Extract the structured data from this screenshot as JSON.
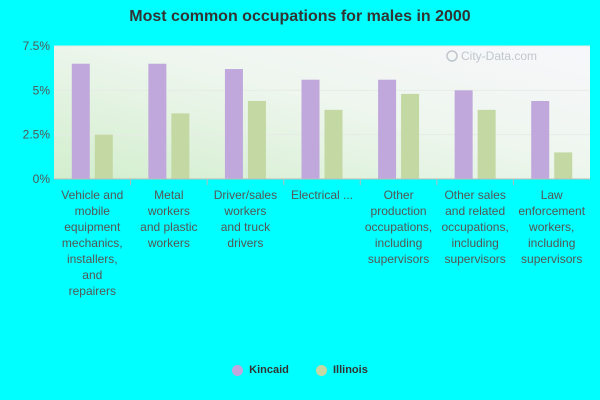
{
  "chart_data": {
    "type": "bar",
    "title": "Most common occupations for males in 2000",
    "categories": [
      "Vehicle and mobile equipment mechanics, installers, and repairers",
      "Metal workers and plastic workers",
      "Driver/sales workers and truck drivers",
      "Electrical ...",
      "Other production occupations, including supervisors",
      "Other sales and related occupations, including supervisors",
      "Law enforcement workers, including supervisors"
    ],
    "category_lines": [
      [
        "Vehicle and",
        "mobile",
        "equipment",
        "mechanics,",
        "installers,",
        "and",
        "repairers"
      ],
      [
        "Metal",
        "workers",
        "and plastic",
        "workers"
      ],
      [
        "Driver/sales",
        "workers",
        "and truck",
        "drivers"
      ],
      [
        "Electrical ..."
      ],
      [
        "Other",
        "production",
        "occupations,",
        "including",
        "supervisors"
      ],
      [
        "Other sales",
        "and related",
        "occupations,",
        "including",
        "supervisors"
      ],
      [
        "Law",
        "enforcement",
        "workers,",
        "including",
        "supervisors"
      ]
    ],
    "series": [
      {
        "name": "Kincaid",
        "color": "#c0a8dc",
        "values": [
          6.5,
          6.5,
          6.2,
          5.6,
          5.6,
          5.0,
          4.4
        ]
      },
      {
        "name": "Illinois",
        "color": "#c4d8a4",
        "values": [
          2.5,
          3.7,
          4.4,
          3.9,
          4.8,
          3.9,
          1.5
        ]
      }
    ],
    "ylim": [
      0,
      7.5
    ],
    "yticks": [
      0,
      2.5,
      5,
      7.5
    ],
    "ytick_labels": [
      "0%",
      "2.5%",
      "5%",
      "7.5%"
    ],
    "watermark": "City-Data.com",
    "legend_position": "bottom"
  }
}
